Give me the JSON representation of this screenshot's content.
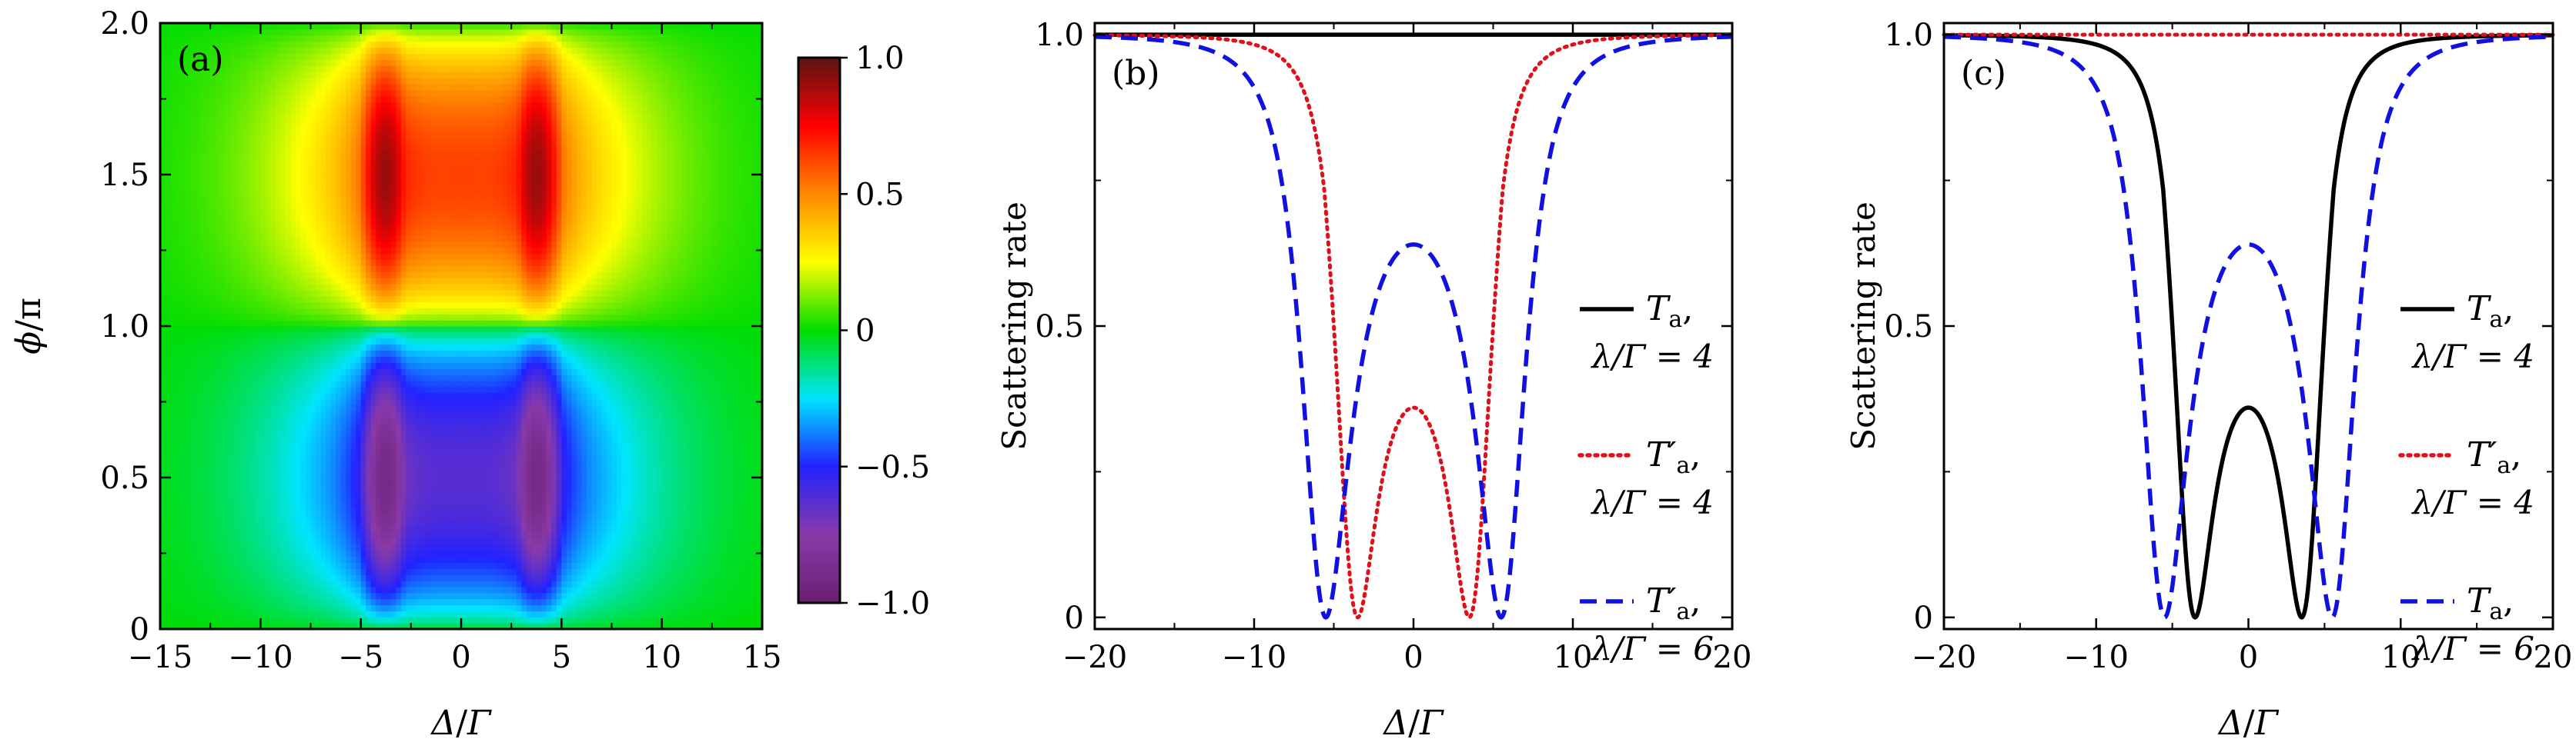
{
  "chart_data": [
    {
      "type": "heatmap",
      "panel_label": "(a)",
      "xlabel": {
        "main": "Δ",
        "sep": "/",
        "sub": "Γ"
      },
      "ylabel": {
        "main": "ϕ",
        "sep": "/",
        "sub": "π"
      },
      "xlim": [
        -15,
        15
      ],
      "ylim": [
        0,
        2
      ],
      "xticks": [
        -15,
        -10,
        -5,
        0,
        5,
        10,
        15
      ],
      "xtick_labels": [
        "−15",
        "−10",
        "−5",
        "0",
        "5",
        "10",
        "15"
      ],
      "yticks": [
        0,
        0.5,
        1.0,
        1.5,
        2.0
      ],
      "ytick_labels": [
        "0",
        "0.5",
        "1.0",
        "1.5",
        "2.0"
      ],
      "colorbar": {
        "range": [
          -1,
          1
        ],
        "ticks": [
          -1,
          -0.5,
          0,
          0.5,
          1
        ],
        "tick_labels": [
          "−1.0",
          "−0.5",
          "0",
          "0.5",
          "1.0"
        ],
        "colors": [
          "#6a1e72",
          "#8a3aa8",
          "#2222ff",
          "#00e5ff",
          "#00dd00",
          "#ffff00",
          "#ff8800",
          "#ff0000",
          "#5a1414"
        ]
      },
      "features": [
        {
          "phi_range": [
            1.0,
            2.0
          ],
          "peak_positions": [
            -3.8,
            3.8
          ],
          "peak_value": 0.95
        },
        {
          "phi_range": [
            0.0,
            1.0
          ],
          "peak_positions": [
            -3.8,
            3.8
          ],
          "peak_value": -0.95
        }
      ]
    },
    {
      "type": "line",
      "panel_label": "(b)",
      "xlabel": {
        "main": "Δ",
        "sep": "/",
        "sub": "Γ"
      },
      "ylabel": "Scattering rate",
      "xlim": [
        -20,
        20
      ],
      "ylim": [
        -0.02,
        1.02
      ],
      "xticks": [
        -20,
        -10,
        0,
        10,
        20
      ],
      "xtick_labels": [
        "−20",
        "−10",
        "0",
        "10",
        "20"
      ],
      "yticks": [
        0,
        0.5,
        1.0
      ],
      "ytick_labels": [
        "0",
        "0.5",
        "1.0"
      ],
      "series": [
        {
          "name": "Ta",
          "legend_main": "T",
          "legend_sub": "a",
          "legend_param": "λ/Γ = 4",
          "style": "solid",
          "color": "#000000",
          "lambda": 4,
          "center_value": 1.0,
          "dip_positions": []
        },
        {
          "name": "T'a",
          "legend_main": "T′",
          "legend_sub": "a",
          "legend_param": "λ/Γ = 4",
          "style": "dotted",
          "color": "#e0101a",
          "lambda": 4,
          "center_value": 0.36,
          "dip_positions": [
            -3.5,
            3.5
          ]
        },
        {
          "name": "T'a",
          "legend_main": "T′",
          "legend_sub": "a",
          "legend_param": "λ/Γ = 6",
          "style": "dashed",
          "color": "#1010e0",
          "lambda": 6,
          "center_value": 0.64,
          "dip_positions": [
            -5.5,
            5.5
          ]
        }
      ]
    },
    {
      "type": "line",
      "panel_label": "(c)",
      "xlabel": {
        "main": "Δ",
        "sep": "/",
        "sub": "Γ"
      },
      "ylabel": "Scattering rate",
      "xlim": [
        -20,
        20
      ],
      "ylim": [
        -0.02,
        1.02
      ],
      "xticks": [
        -20,
        -10,
        0,
        10,
        20
      ],
      "xtick_labels": [
        "−20",
        "−10",
        "0",
        "10",
        "20"
      ],
      "yticks": [
        0,
        0.5,
        1.0
      ],
      "ytick_labels": [
        "0",
        "0.5",
        "1.0"
      ],
      "series": [
        {
          "name": "Ta",
          "legend_main": "T",
          "legend_sub": "a",
          "legend_param": "λ/Γ = 4",
          "style": "solid",
          "color": "#000000",
          "lambda": 4,
          "center_value": 0.36,
          "dip_positions": [
            -3.5,
            3.5
          ]
        },
        {
          "name": "T'a",
          "legend_main": "T′",
          "legend_sub": "a",
          "legend_param": "λ/Γ = 4",
          "style": "dotted",
          "color": "#e0101a",
          "lambda": 4,
          "center_value": 1.0,
          "dip_positions": []
        },
        {
          "name": "Ta",
          "legend_main": "T",
          "legend_sub": "a",
          "legend_param": "λ/Γ = 6",
          "style": "dashed",
          "color": "#1010e0",
          "lambda": 6,
          "center_value": 0.64,
          "dip_positions": [
            -5.5,
            5.5
          ]
        }
      ]
    }
  ]
}
